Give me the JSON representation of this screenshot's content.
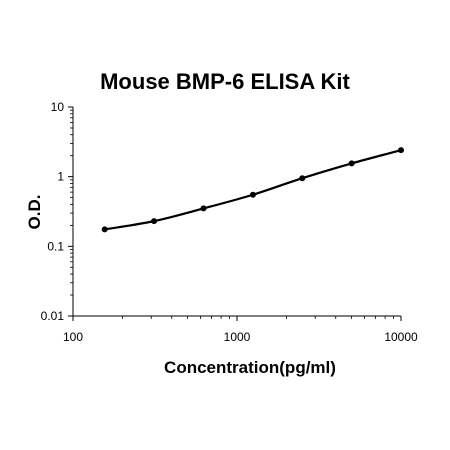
{
  "chart_data": {
    "type": "scatter",
    "title": "Mouse BMP-6 ELISA Kit",
    "xlabel": "Concentration(pg/ml)",
    "ylabel": "O.D.",
    "x_scale": "log",
    "y_scale": "log",
    "xlim": [
      100,
      10000
    ],
    "ylim": [
      0.01,
      10
    ],
    "x_ticks": [
      "100",
      "1000",
      "10000"
    ],
    "y_ticks": [
      "10",
      "1",
      "0.1",
      "0.01"
    ],
    "grid": false,
    "legend": "none",
    "series": [
      {
        "x": [
          156,
          312,
          625,
          1250,
          2500,
          5000,
          10000
        ],
        "y": [
          0.175,
          0.23,
          0.35,
          0.55,
          0.95,
          1.55,
          2.4
        ],
        "marker_color": "#000000",
        "fit_curve": true
      }
    ]
  }
}
